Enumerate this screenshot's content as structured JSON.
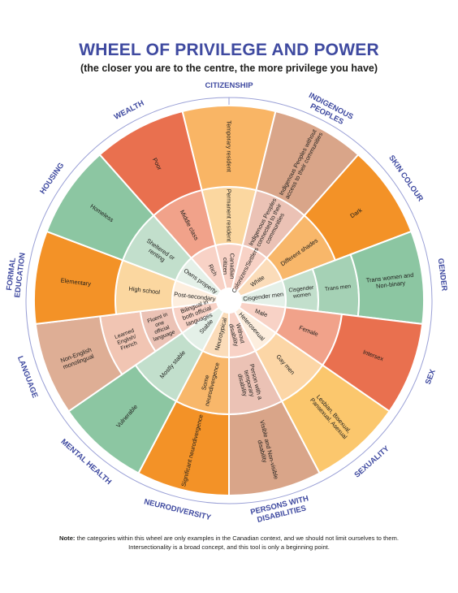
{
  "header": {
    "title": "WHEEL OF PRIVILEGE AND POWER",
    "subtitle": "(the closer you are to the centre, the more privilege you have)"
  },
  "wheel": {
    "categories": [
      {
        "name": "CITIZENSHIP",
        "rings": [
          {
            "label": "Canadian citizen",
            "color": "#f8d2c6"
          },
          {
            "label": "Permanent resident",
            "color": "#fbd7a0"
          },
          {
            "label": "Temporary resident",
            "color": "#f9b565"
          }
        ]
      },
      {
        "name": "INDIGENOUS PEOPLES",
        "rings": [
          {
            "label": "Colonizers/Settlers",
            "color": "#f8d2c6"
          },
          {
            "label": "Indigenous Peoples connected to their communities",
            "color": "#ebc2b5"
          },
          {
            "label": "Indigenous Peoples without access to their communities",
            "color": "#d9a589"
          }
        ]
      },
      {
        "name": "SKIN COLOUR",
        "rings": [
          {
            "label": "White",
            "color": "#fbdcb9"
          },
          {
            "label": "Different shades",
            "color": "#f8b76a"
          },
          {
            "label": "Dark",
            "color": "#f39227"
          }
        ]
      },
      {
        "name": "GENDER",
        "rings": [
          {
            "label": "Cisgender men",
            "color": "#e4f0e8"
          },
          {
            "label": "Cisgender women",
            "color": "#c2dfcc"
          },
          {
            "label": "Trans men",
            "color": "#a5d1b5"
          },
          {
            "label": "Trans women and Non-binary",
            "color": "#8cc6a2"
          }
        ]
      },
      {
        "name": "SEX",
        "rings": [
          {
            "label": "Male",
            "color": "#f8d2c6"
          },
          {
            "label": "Female",
            "color": "#f1a28a"
          },
          {
            "label": "Intersex",
            "color": "#e9704f"
          }
        ]
      },
      {
        "name": "SEXUALITY",
        "rings": [
          {
            "label": "Heterosexual",
            "color": "#fdeede"
          },
          {
            "label": "Gay men",
            "color": "#fcd6a6"
          },
          {
            "label": "Lesbian, Bisexual, Pansexual, Asexual",
            "color": "#fbc76d"
          }
        ]
      },
      {
        "name": "PERSONS WITH DISABILITIES",
        "rings": [
          {
            "label": "Without disability",
            "color": "#f8d2c6"
          },
          {
            "label": "Person with a temporary disability",
            "color": "#ebc2b5"
          },
          {
            "label": "Visible and Non-visible disability",
            "color": "#d9a589"
          }
        ]
      },
      {
        "name": "NEURODIVERSITY",
        "rings": [
          {
            "label": "Neurotypical",
            "color": "#fbdcb9"
          },
          {
            "label": "Some neurodivergence",
            "color": "#f8b76a"
          },
          {
            "label": "Significant neurodivergence",
            "color": "#f39227"
          }
        ]
      },
      {
        "name": "MENTAL HEALTH",
        "rings": [
          {
            "label": "Stable",
            "color": "#e4f0e8"
          },
          {
            "label": "Mostly stable",
            "color": "#c2dfcc"
          },
          {
            "label": "Vulnerable",
            "color": "#8cc6a2"
          }
        ]
      },
      {
        "name": "LANGUAGE",
        "rings": [
          {
            "label": "Bilingual in both official languages",
            "color": "#f8d2c6"
          },
          {
            "label": "Fluent in one official language",
            "color": "#ebc2b5"
          },
          {
            "label": "Learned English/ French",
            "color": "#f1c5b3"
          },
          {
            "label": "Non-English monolingual",
            "color": "#deae95"
          }
        ]
      },
      {
        "name": "FORMAL EDUCATION",
        "rings": [
          {
            "label": "Post-secondary",
            "color": "#fdeede"
          },
          {
            "label": "High school",
            "color": "#fbd7a0"
          },
          {
            "label": "Elementary",
            "color": "#f39227"
          }
        ]
      },
      {
        "name": "HOUSING",
        "rings": [
          {
            "label": "Owns property",
            "color": "#e4f0e8"
          },
          {
            "label": "Sheltered or renting",
            "color": "#c2dfcc"
          },
          {
            "label": "Homeless",
            "color": "#8cc6a2"
          }
        ]
      },
      {
        "name": "WEALTH",
        "rings": [
          {
            "label": "Rich",
            "color": "#f8d2c6"
          },
          {
            "label": "Middle class",
            "color": "#f1a28a"
          },
          {
            "label": "Poor",
            "color": "#e9704f"
          }
        ]
      }
    ]
  },
  "note": {
    "bold": "Note:",
    "text": "the categories within this wheel are only examples in the Canadian context, and we should not limit ourselves to them. Intersectionality is a broad concept, and this tool is only a beginning point."
  },
  "colors": {
    "title": "#3f4aa0",
    "category_labels": "#3f4aa0",
    "outer_ring": "#9aa0d6"
  }
}
